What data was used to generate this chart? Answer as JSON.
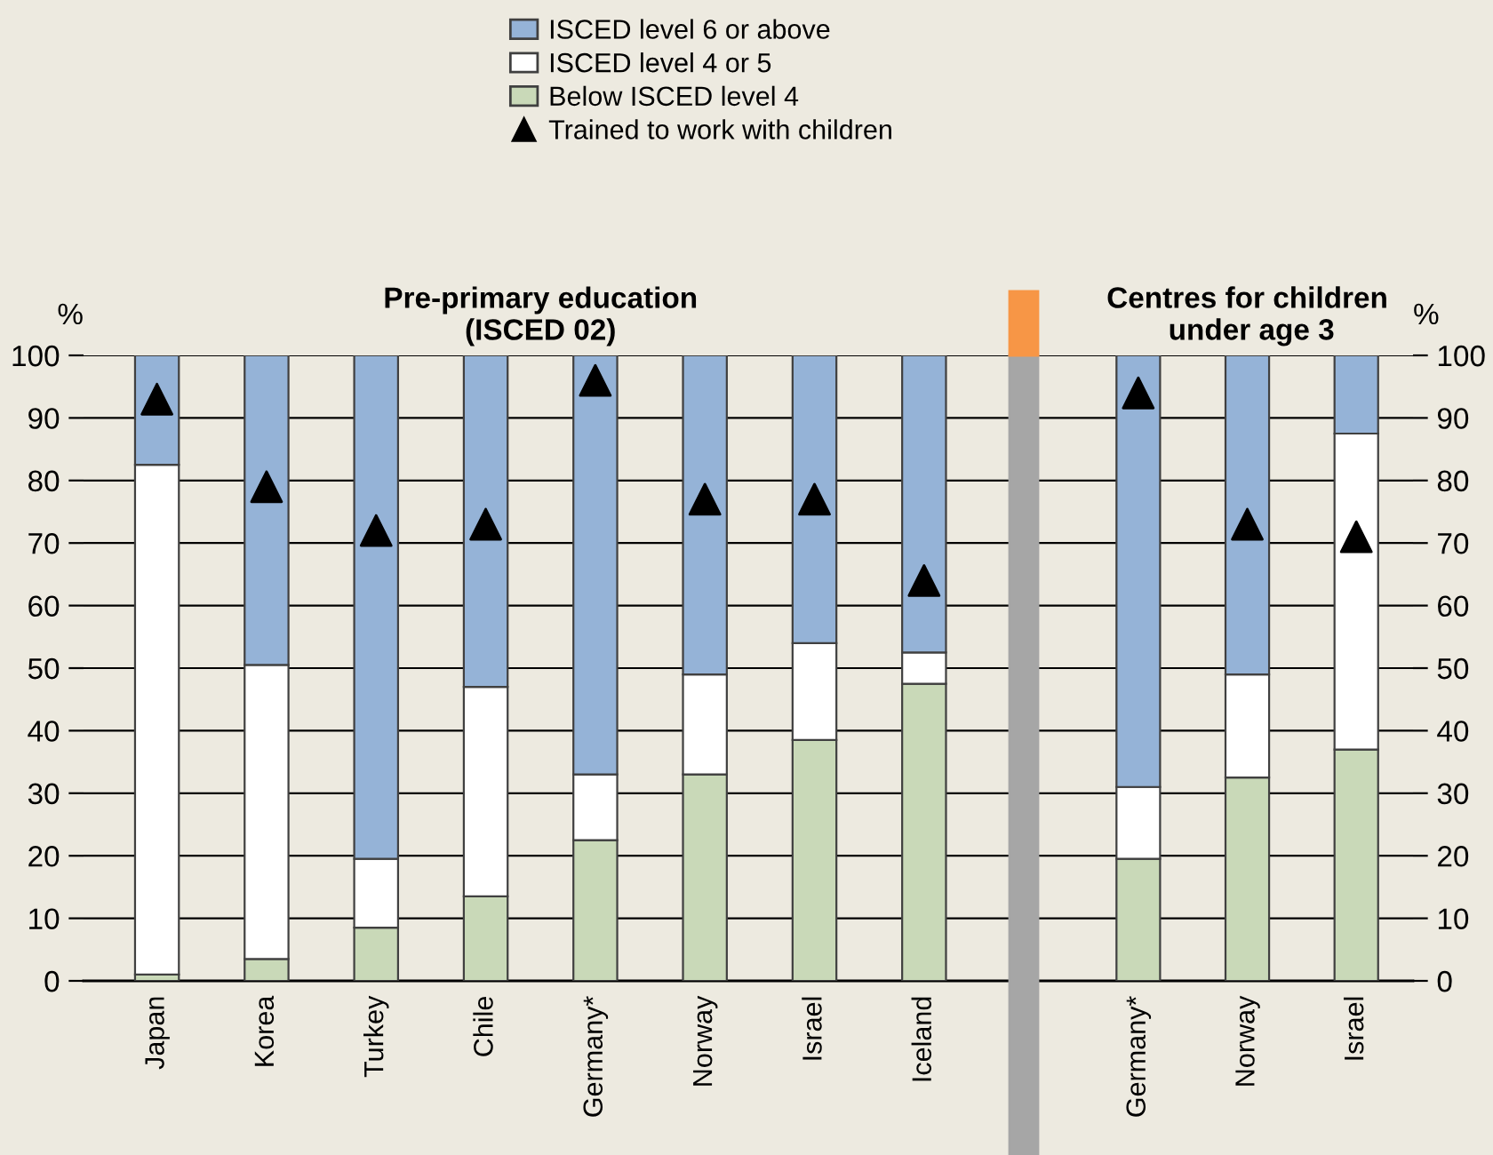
{
  "chart_data": [
    {
      "type": "bar",
      "title": "Pre-primary education\n(ISCED 02)",
      "ylabel": "%",
      "stacked": true,
      "categories": [
        "Japan",
        "Korea",
        "Turkey",
        "Chile",
        "Germany*",
        "Norway",
        "Israel",
        "Iceland"
      ],
      "series": [
        {
          "name": "Below ISCED level 4",
          "color": "#c9d9b8",
          "values": [
            1,
            3.5,
            8.5,
            13.5,
            22.5,
            33,
            38.5,
            47.5
          ]
        },
        {
          "name": "ISCED level 4 or 5",
          "color": "#ffffff",
          "values": [
            81.5,
            47,
            11,
            33.5,
            10.5,
            16,
            15.5,
            5
          ]
        },
        {
          "name": "ISCED level 6 or above",
          "color": "#95b3d7",
          "values": [
            17.5,
            49.5,
            80.5,
            53,
            67,
            51,
            46,
            47.5
          ]
        },
        {
          "name": "Trained to work with children",
          "type": "scatter",
          "color": "#000000",
          "values": [
            93,
            79,
            72,
            73,
            96,
            77,
            77,
            64
          ]
        }
      ],
      "ylim": [
        0,
        100
      ],
      "yticks": [
        0,
        10,
        20,
        30,
        40,
        50,
        60,
        70,
        80,
        90,
        100
      ],
      "grid": "y",
      "legend": "top",
      "marker": "triangle",
      "tick_labels": "y"
    },
    {
      "type": "bar",
      "title": "Centres for children\n under age 3",
      "ylabel": "%",
      "stacked": true,
      "categories": [
        "Germany*",
        "Norway",
        "Israel"
      ],
      "series": [
        {
          "color": "#c9d9b8",
          "values": [
            19.5,
            32.5,
            37
          ]
        },
        {
          "color": "#ffffff",
          "values": [
            11.5,
            16.5,
            50.5
          ]
        },
        {
          "color": "#95b3d7",
          "values": [
            69,
            51,
            12.5
          ]
        },
        {
          "type": "scatter",
          "color": "#000000",
          "values": [
            94,
            73,
            71
          ]
        }
      ],
      "ylim": [
        0,
        100
      ],
      "yticks": [
        0,
        10,
        20,
        30,
        40,
        50,
        60,
        70,
        80,
        90,
        100
      ],
      "grid": "y",
      "marker": "triangle",
      "tick_labels": "y"
    }
  ]
}
